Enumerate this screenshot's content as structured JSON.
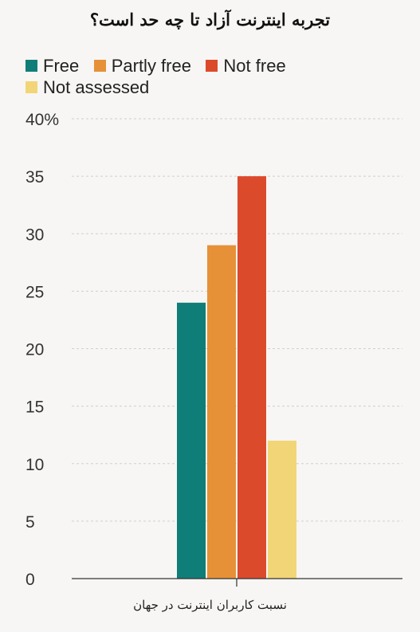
{
  "chart_data": {
    "type": "bar",
    "title": "تجربه اینترنت آزاد تا چه حد است؟",
    "xlabel": "نسبت کاربران اینترنت در جهان",
    "ylabel": "",
    "categories": [
      "نسبت کاربران اینترنت در جهان"
    ],
    "series": [
      {
        "name": "Free",
        "values": [
          24
        ],
        "color": "#0f7e78"
      },
      {
        "name": "Partly free",
        "values": [
          29
        ],
        "color": "#e69138"
      },
      {
        "name": "Not free",
        "values": [
          35
        ],
        "color": "#dc4a2c"
      },
      {
        "name": "Not assessed",
        "values": [
          12
        ],
        "color": "#f2d577"
      }
    ],
    "ylim": [
      0,
      40
    ],
    "yticks": [
      {
        "value": 40,
        "label": "40%"
      },
      {
        "value": 35,
        "label": "35"
      },
      {
        "value": 30,
        "label": "30"
      },
      {
        "value": 25,
        "label": "25"
      },
      {
        "value": 20,
        "label": "20"
      },
      {
        "value": 15,
        "label": "15"
      },
      {
        "value": 10,
        "label": "10"
      },
      {
        "value": 5,
        "label": "5"
      },
      {
        "value": 0,
        "label": "0"
      }
    ],
    "grid": true,
    "legend_position": "top-left"
  }
}
